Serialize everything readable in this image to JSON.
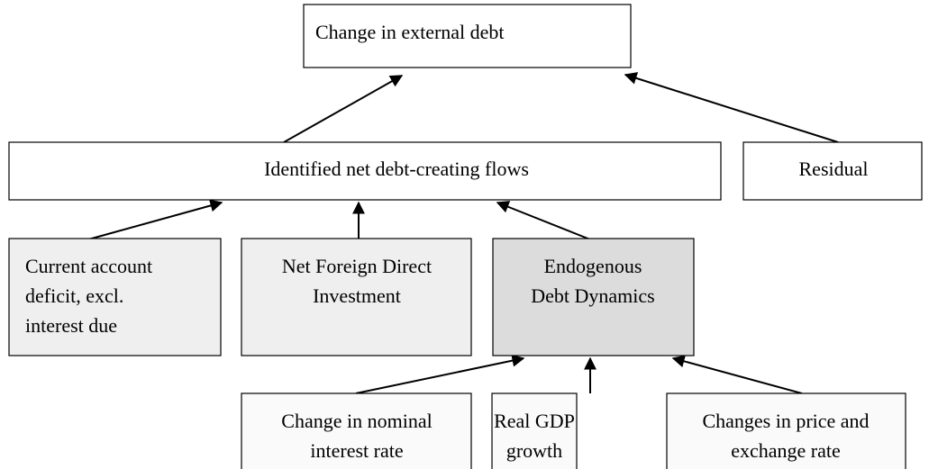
{
  "nodes": [
    {
      "lines": [
        "Change in external debt"
      ]
    },
    {
      "lines": [
        "Identified net debt-creating flows"
      ]
    },
    {
      "lines": [
        "Residual"
      ]
    },
    {
      "lines": [
        "Current account",
        "deficit, excl.",
        "interest due"
      ]
    },
    {
      "lines": [
        "Net Foreign Direct",
        "Investment"
      ]
    },
    {
      "lines": [
        "Endogenous",
        "Debt Dynamics"
      ]
    },
    {
      "lines": [
        "Change in nominal",
        "interest rate"
      ]
    },
    {
      "lines": [
        "Real GDP",
        "growth"
      ]
    },
    {
      "lines": [
        "Changes in price and",
        "exchange rate"
      ]
    }
  ]
}
